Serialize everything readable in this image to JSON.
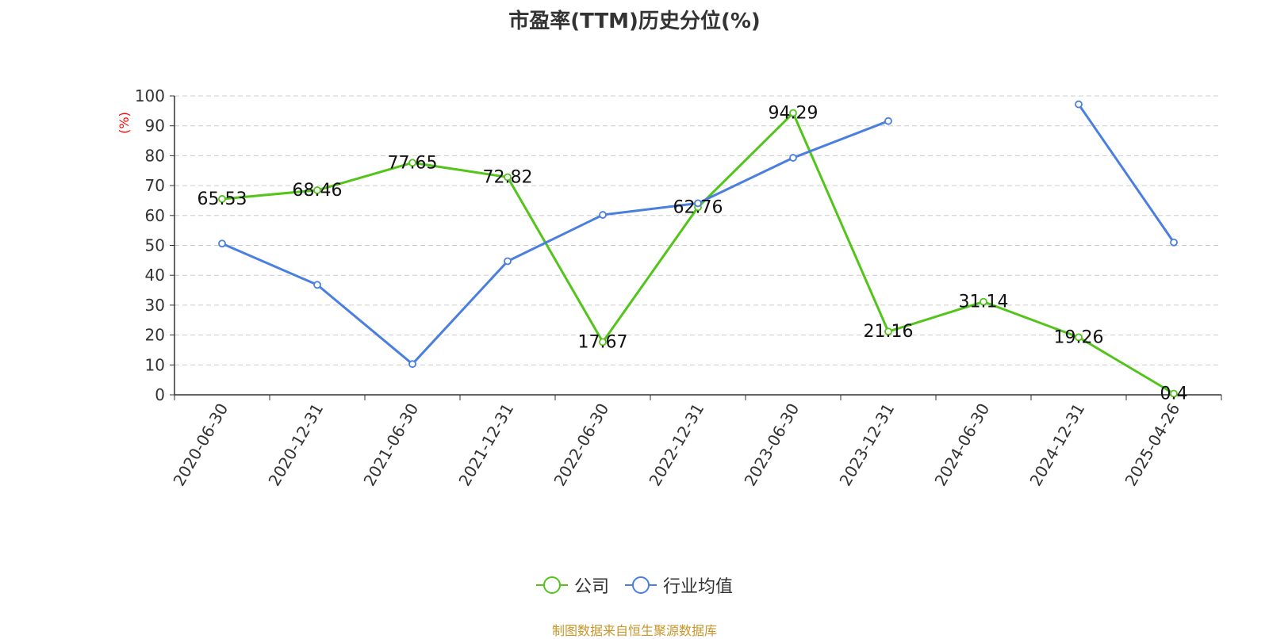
{
  "title": "市盈率(TTM)历史分位(%)",
  "source_text": "制图数据来自恒生聚源数据库",
  "colors": {
    "company": "#52c41a",
    "industry": "#4a7fe0",
    "ylabel": "#ff0000",
    "source": "#c8962a"
  },
  "chart_data": {
    "type": "line",
    "title": "市盈率(TTM)历史分位(%)",
    "xlabel": "",
    "ylabel": "(%)",
    "ylim": [
      0,
      100
    ],
    "yticks": [
      0,
      10,
      20,
      30,
      40,
      50,
      60,
      70,
      80,
      90,
      100
    ],
    "grid": true,
    "legend_position": "bottom",
    "categories": [
      "2020-06-30",
      "2020-12-31",
      "2021-06-30",
      "2021-12-31",
      "2022-06-30",
      "2022-12-31",
      "2023-06-30",
      "2023-12-31",
      "2024-06-30",
      "2024-12-31",
      "2025-04-26"
    ],
    "series": [
      {
        "name": "公司",
        "values": [
          65.53,
          68.46,
          77.65,
          72.82,
          17.67,
          62.76,
          94.29,
          21.16,
          31.14,
          19.26,
          0.4
        ],
        "labels_shown": true
      },
      {
        "name": "行业均值",
        "values": [
          50.6,
          36.8,
          10.3,
          44.7,
          60.2,
          64.1,
          79.3,
          91.6,
          null,
          97.2,
          51.0
        ],
        "labels_shown": false
      }
    ]
  }
}
